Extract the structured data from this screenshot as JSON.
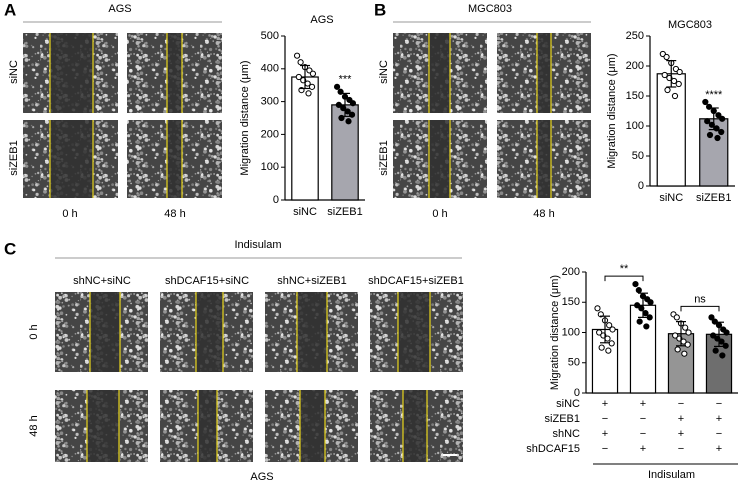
{
  "figure": {
    "panels": [
      "A",
      "B",
      "C"
    ],
    "a": {
      "header": "AGS",
      "rows": [
        "siNC",
        "siZEB1"
      ],
      "times": [
        "0 h",
        "48 h"
      ]
    },
    "b": {
      "header": "MGC803",
      "rows": [
        "siNC",
        "siZEB1"
      ],
      "times": [
        "0 h",
        "48 h"
      ]
    },
    "c": {
      "header": "Indisulam",
      "columns": [
        "shNC+siNC",
        "shDCAF15+siNC",
        "shNC+siZEB1",
        "shDCAF15+siZEB1"
      ],
      "rows": [
        "0 h",
        "48 h"
      ],
      "footer": "AGS"
    }
  },
  "chart_data": [
    {
      "type": "bar",
      "title": "AGS",
      "y_label": "Migration distance (μm)",
      "categories": [
        "siNC",
        "siZEB1"
      ],
      "values": [
        375,
        290
      ],
      "errors": [
        35,
        35
      ],
      "colors": [
        "#ffffff",
        "#a6a6ae"
      ],
      "points": [
        [
          440,
          420,
          405,
          395,
          385,
          375,
          365,
          355,
          345,
          335,
          325
        ],
        [
          345,
          330,
          315,
          305,
          295,
          290,
          280,
          270,
          260,
          250,
          240
        ]
      ],
      "annotations": [
        "***"
      ],
      "ylim": [
        0,
        500
      ],
      "yticks": [
        0,
        100,
        200,
        300,
        400,
        500
      ]
    },
    {
      "type": "bar",
      "title": "MGC803",
      "y_label": "Migration distance (μm)",
      "categories": [
        "siNC",
        "siZEB1"
      ],
      "values": [
        187,
        112
      ],
      "errors": [
        22,
        18
      ],
      "colors": [
        "#ffffff",
        "#a6a6ae"
      ],
      "points": [
        [
          220,
          215,
          205,
          195,
          190,
          185,
          180,
          175,
          170,
          160,
          150
        ],
        [
          140,
          132,
          125,
          118,
          112,
          108,
          102,
          96,
          90,
          85,
          80
        ]
      ],
      "annotations": [
        "****"
      ],
      "ylim": [
        0,
        250
      ],
      "yticks": [
        0,
        50,
        100,
        150,
        200,
        250
      ]
    },
    {
      "type": "bar",
      "y_label": "Migration distance (μm)",
      "categories": [
        null,
        null,
        null,
        null
      ],
      "values": [
        105,
        145,
        98,
        97
      ],
      "errors": [
        22,
        20,
        20,
        20
      ],
      "colors": [
        "#ffffff",
        "#ffffff",
        "#959595",
        "#6e6e6e"
      ],
      "points": [
        [
          140,
          130,
          120,
          112,
          105,
          100,
          95,
          90,
          82,
          75,
          70
        ],
        [
          180,
          170,
          160,
          155,
          150,
          145,
          140,
          132,
          125,
          118,
          110
        ],
        [
          130,
          125,
          115,
          108,
          100,
          95,
          90,
          85,
          80,
          72,
          65
        ],
        [
          125,
          118,
          112,
          105,
          100,
          95,
          90,
          85,
          78,
          70,
          62
        ]
      ],
      "annotations": [
        "**",
        "ns"
      ],
      "ylim": [
        0,
        200
      ],
      "yticks": [
        0,
        50,
        100,
        150,
        200
      ],
      "sign_table": {
        "rows": [
          {
            "label": "siNC",
            "signs": [
              "+",
              "+",
              "−",
              "−"
            ]
          },
          {
            "label": "siZEB1",
            "signs": [
              "−",
              "−",
              "+",
              "+"
            ]
          },
          {
            "label": "shNC",
            "signs": [
              "+",
              "−",
              "+",
              "−"
            ]
          },
          {
            "label": "shDCAF15",
            "signs": [
              "−",
              "+",
              "−",
              "+"
            ]
          }
        ],
        "group_label": "Indisulam"
      }
    }
  ]
}
